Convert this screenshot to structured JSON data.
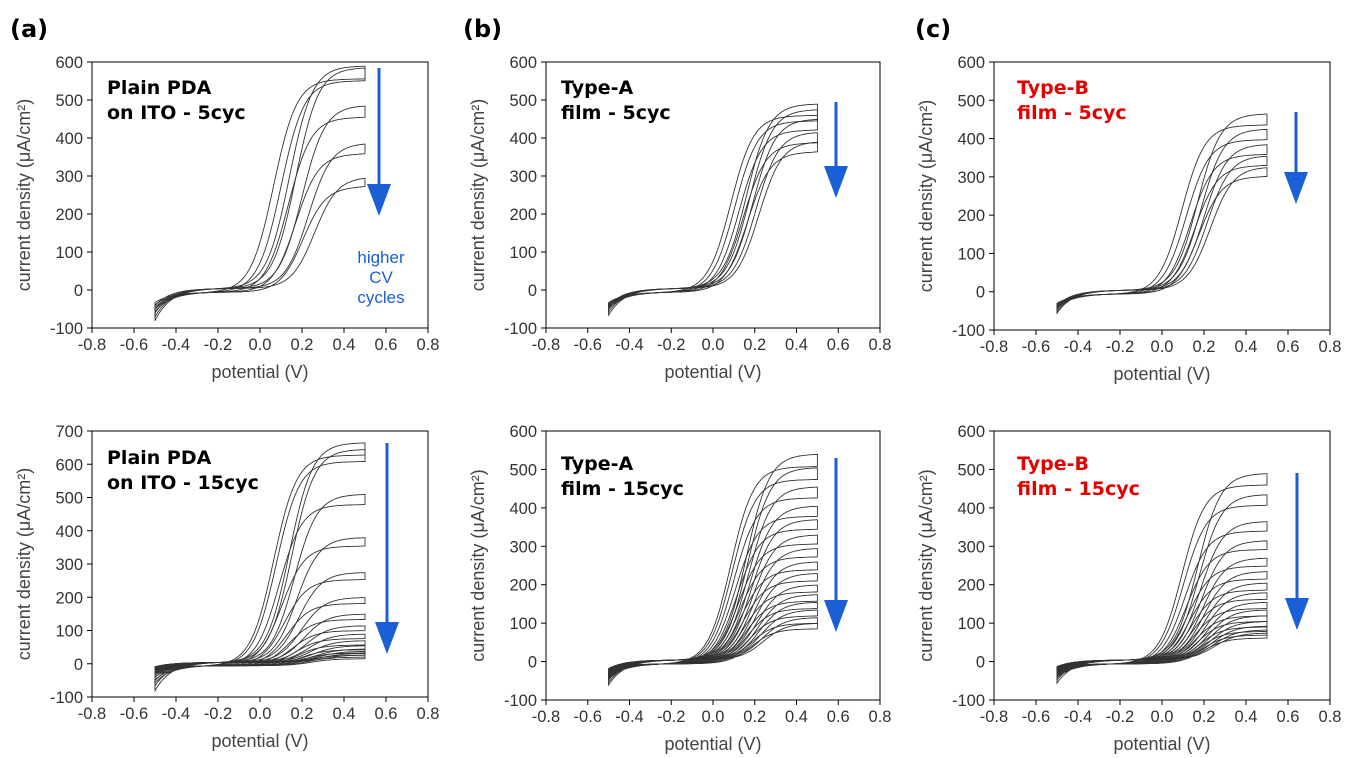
{
  "figure": {
    "panel_letters": [
      "(a)",
      "(b)",
      "(c)"
    ],
    "colors": {
      "curves": "#333333",
      "arrow": "#1a5fd6",
      "label_default": "#000000",
      "label_highlight": "#e50000"
    }
  },
  "chart_data": [
    {
      "type": "line",
      "panel": "(a)",
      "xlabel": "potential (V)",
      "ylabel": "current density (μA/cm²)",
      "xlim": [
        -0.8,
        0.8
      ],
      "ylim": [
        -100,
        600
      ],
      "xticks": [
        "-0.8",
        "-0.6",
        "-0.4",
        "-0.2",
        "0.0",
        "0.2",
        "0.4",
        "0.6",
        "0.8"
      ],
      "yticks": [
        "-100",
        "0",
        "100",
        "200",
        "300",
        "400",
        "500",
        "600"
      ],
      "label_lines": [
        "Plain PDA",
        "on ITO - 5cyc"
      ],
      "label_color": "#000000",
      "annotation_lines": [
        "higher",
        "CV",
        "cycles"
      ],
      "cycles": 5,
      "vmin": -0.5,
      "vmax": 0.5,
      "series_peak_current": [
        585,
        580,
        480,
        380,
        290
      ],
      "series_min_current": [
        -85,
        -75,
        -65,
        -55,
        -45
      ],
      "onset_potential_range": [
        0.14,
        0.26
      ]
    },
    {
      "type": "line",
      "panel": "(b)",
      "xlabel": "potential (V)",
      "ylabel": "current density (μA/cm²)",
      "xlim": [
        -0.8,
        0.8
      ],
      "ylim": [
        -100,
        600
      ],
      "xticks": [
        "-0.8",
        "-0.6",
        "-0.4",
        "-0.2",
        "0.0",
        "0.2",
        "0.4",
        "0.6",
        "0.8"
      ],
      "yticks": [
        "-100",
        "0",
        "100",
        "200",
        "300",
        "400",
        "500",
        "600"
      ],
      "label_lines": [
        "Type-A",
        "film - 5cyc"
      ],
      "label_color": "#000000",
      "cycles": 5,
      "vmin": -0.5,
      "vmax": 0.5,
      "series_peak_current": [
        485,
        470,
        445,
        410,
        385
      ],
      "series_min_current": [
        -70,
        -62,
        -55,
        -50,
        -45
      ],
      "onset_potential_range": [
        0.16,
        0.22
      ]
    },
    {
      "type": "line",
      "panel": "(c)",
      "xlabel": "potential (V)",
      "ylabel": "current density (μA/cm²)",
      "xlim": [
        -0.8,
        0.8
      ],
      "ylim": [
        -100,
        600
      ],
      "xticks": [
        "-0.8",
        "-0.6",
        "-0.4",
        "-0.2",
        "0.0",
        "0.2",
        "0.4",
        "0.6",
        "0.8"
      ],
      "yticks": [
        "-100",
        "0",
        "100",
        "200",
        "300",
        "400",
        "500",
        "600"
      ],
      "label_lines": [
        "Type-B",
        "film - 5cyc"
      ],
      "label_color": "#e50000",
      "cycles": 5,
      "vmin": -0.5,
      "vmax": 0.5,
      "series_peak_current": [
        460,
        420,
        380,
        350,
        320
      ],
      "series_min_current": [
        -60,
        -55,
        -50,
        -45,
        -40
      ],
      "onset_potential_range": [
        0.17,
        0.23
      ]
    },
    {
      "type": "line",
      "panel": "(a)",
      "xlabel": "potential (V)",
      "ylabel": "current density (μA/cm²)",
      "xlim": [
        -0.8,
        0.8
      ],
      "ylim": [
        -100,
        700
      ],
      "xticks": [
        "-0.8",
        "-0.6",
        "-0.4",
        "-0.2",
        "0.0",
        "0.2",
        "0.4",
        "0.6",
        "0.8"
      ],
      "yticks": [
        "-100",
        "0",
        "100",
        "200",
        "300",
        "400",
        "500",
        "600",
        "700"
      ],
      "label_lines": [
        "Plain PDA",
        "on ITO - 15cyc"
      ],
      "label_color": "#000000",
      "cycles": 15,
      "vmin": -0.5,
      "vmax": 0.5,
      "series_peak_current": [
        660,
        640,
        505,
        375,
        270,
        195,
        145,
        110,
        85,
        65,
        50,
        40,
        33,
        27,
        22
      ],
      "series_min_current": [
        -85,
        -70,
        -55,
        -45,
        -38,
        -32,
        -28,
        -25,
        -22,
        -20,
        -18,
        -16,
        -15,
        -14,
        -13
      ],
      "onset_potential_range": [
        0.14,
        0.3
      ]
    },
    {
      "type": "line",
      "panel": "(b)",
      "xlabel": "potential (V)",
      "ylabel": "current density (μA/cm²)",
      "xlim": [
        -0.8,
        0.8
      ],
      "ylim": [
        -100,
        600
      ],
      "xticks": [
        "-0.8",
        "-0.6",
        "-0.4",
        "-0.2",
        "0.0",
        "0.2",
        "0.4",
        "0.6",
        "0.8"
      ],
      "yticks": [
        "-100",
        "0",
        "100",
        "200",
        "300",
        "400",
        "500",
        "600"
      ],
      "label_lines": [
        "Type-A",
        "film - 15cyc"
      ],
      "label_color": "#000000",
      "cycles": 15,
      "vmin": -0.5,
      "vmax": 0.5,
      "series_peak_current": [
        535,
        500,
        450,
        400,
        365,
        325,
        290,
        255,
        225,
        195,
        170,
        150,
        130,
        110,
        95
      ],
      "series_min_current": [
        -65,
        -58,
        -52,
        -47,
        -43,
        -40,
        -37,
        -35,
        -33,
        -31,
        -29,
        -27,
        -25,
        -24,
        -22
      ],
      "onset_potential_range": [
        0.16,
        0.24
      ]
    },
    {
      "type": "line",
      "panel": "(c)",
      "xlabel": "potential (V)",
      "ylabel": "current density (μA/cm²)",
      "xlim": [
        -0.8,
        0.8
      ],
      "ylim": [
        -100,
        600
      ],
      "xticks": [
        "-0.8",
        "-0.6",
        "-0.4",
        "-0.2",
        "0.0",
        "0.2",
        "0.4",
        "0.6",
        "0.8"
      ],
      "yticks": [
        "-100",
        "0",
        "100",
        "200",
        "300",
        "400",
        "500",
        "600"
      ],
      "label_lines": [
        "Type-B",
        "film - 15cyc"
      ],
      "label_color": "#e50000",
      "cycles": 15,
      "vmin": -0.5,
      "vmax": 0.5,
      "series_peak_current": [
        485,
        430,
        360,
        310,
        265,
        230,
        200,
        175,
        150,
        130,
        115,
        100,
        88,
        78,
        70
      ],
      "series_min_current": [
        -60,
        -52,
        -46,
        -41,
        -37,
        -34,
        -31,
        -28,
        -26,
        -24,
        -22,
        -20,
        -19,
        -18,
        -17
      ],
      "onset_potential_range": [
        0.17,
        0.25
      ]
    }
  ]
}
